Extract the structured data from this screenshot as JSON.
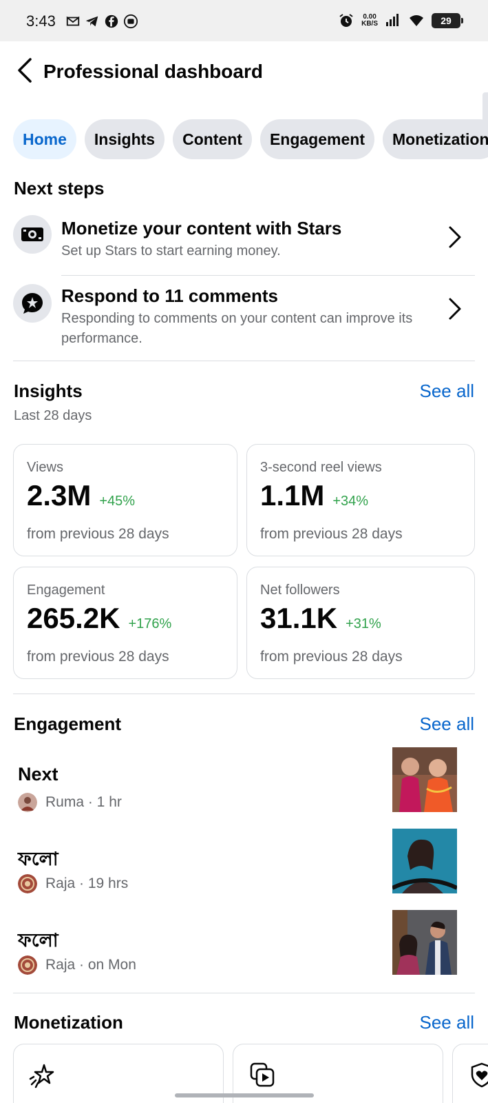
{
  "status_bar": {
    "time": "3:43",
    "left_icons": [
      "gmail-icon",
      "telegram-icon",
      "facebook-icon",
      "messenger-icon"
    ],
    "net_speed_value": "0.00",
    "net_speed_unit": "KB/S",
    "battery": "29"
  },
  "header": {
    "title": "Professional dashboard"
  },
  "tabs": [
    {
      "label": "Home",
      "active": true
    },
    {
      "label": "Insights",
      "active": false
    },
    {
      "label": "Content",
      "active": false
    },
    {
      "label": "Engagement",
      "active": false
    },
    {
      "label": "Monetization",
      "active": false
    }
  ],
  "next_steps": {
    "title": "Next steps",
    "items": [
      {
        "icon": "money-camera-icon",
        "title": "Monetize your content with Stars",
        "description": "Set up Stars to start earning money."
      },
      {
        "icon": "comment-star-icon",
        "title": "Respond to 11 comments",
        "description": "Responding to comments on your content can improve its performance."
      }
    ]
  },
  "insights": {
    "title": "Insights",
    "see_all": "See all",
    "period": "Last 28 days",
    "cards": [
      {
        "label": "Views",
        "value": "2.3M",
        "change": "+45%",
        "footnote": "from previous 28 days"
      },
      {
        "label": "3-second reel views",
        "value": "1.1M",
        "change": "+34%",
        "footnote": "from previous 28 days"
      },
      {
        "label": "Engagement",
        "value": "265.2K",
        "change": "+176%",
        "footnote": "from previous 28 days"
      },
      {
        "label": "Net followers",
        "value": "31.1K",
        "change": "+31%",
        "footnote": "from previous 28 days"
      }
    ]
  },
  "engagement": {
    "title": "Engagement",
    "see_all": "See all",
    "items": [
      {
        "title": "Next",
        "meta": "Ruma · 1 hr"
      },
      {
        "title": "ফলো",
        "meta": "Raja · 19 hrs"
      },
      {
        "title": "ফলো",
        "meta": "Raja · on Mon"
      }
    ]
  },
  "monetization": {
    "title": "Monetization",
    "see_all": "See all",
    "card_icons": [
      "stars-icon",
      "reels-play-icon",
      "heart-shield-icon"
    ]
  },
  "colors": {
    "accent": "#0866cc",
    "accent_bg": "#e7f3ff",
    "positive": "#31a24c",
    "secondary_text": "#65676b",
    "chip_bg": "#e4e6eb"
  }
}
